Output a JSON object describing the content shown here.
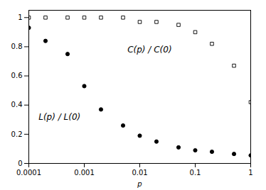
{
  "chart_data": {
    "type": "scatter",
    "xlabel": "p",
    "log": "x",
    "grid": false,
    "xlim": [
      0.0001,
      1.0
    ],
    "ylim": [
      0.0,
      1.05
    ],
    "xticks": [
      0.0001,
      0.001,
      0.01,
      0.1,
      1
    ],
    "yticks": [
      0,
      0.2,
      0.4,
      0.6,
      0.8,
      1
    ],
    "x": [
      0.0001,
      0.0002,
      0.0005,
      0.001,
      0.002,
      0.005,
      0.01,
      0.02,
      0.05,
      0.1,
      0.2,
      0.5,
      1.0
    ],
    "series": [
      {
        "color": "black",
        "marker": "square",
        "values": [
          1.0,
          1.0,
          1.0,
          1.0,
          1.0,
          1.0,
          0.97,
          0.97,
          0.95,
          0.9,
          0.82,
          0.67,
          0.42
        ]
      },
      {
        "color": "black",
        "marker": "circle",
        "values": [
          0.93,
          0.84,
          0.75,
          0.53,
          0.37,
          0.26,
          0.19,
          0.15,
          0.11,
          0.09,
          0.08,
          0.065,
          0.055
        ]
      }
    ],
    "annotations": [
      {
        "text": "C(p) / C(0)",
        "x": 0.006,
        "y": 0.76
      },
      {
        "text": "L(p) / L(0)",
        "x": 0.00015,
        "y": 0.3
      }
    ]
  }
}
